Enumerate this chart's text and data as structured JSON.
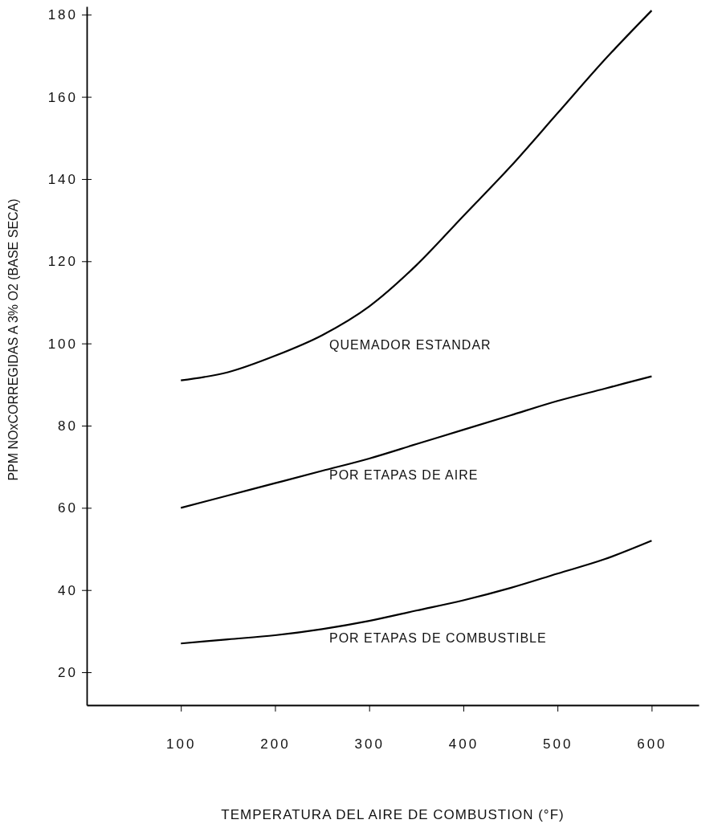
{
  "chart_data": {
    "type": "line",
    "xlabel": "TEMPERATURA DEL AIRE DE COMBUSTION (°F)",
    "ylabel": "PPM NOxCORREGIDAS A 3% O2 (BASE SECA)",
    "x": [
      100,
      150,
      200,
      250,
      300,
      350,
      400,
      450,
      500,
      550,
      600
    ],
    "series": [
      {
        "name": "QUEMADOR ESTANDAR",
        "color": "#000000",
        "values": [
          91,
          93,
          97,
          102,
          109,
          119,
          131,
          143,
          156,
          169,
          181
        ]
      },
      {
        "name": "POR ETAPAS DE AIRE",
        "color": "#000000",
        "values": [
          60,
          63,
          66,
          69,
          72,
          75.5,
          79,
          82.5,
          86,
          89,
          92
        ]
      },
      {
        "name": "POR ETAPAS DE COMBUSTIBLE",
        "color": "#000000",
        "values": [
          27,
          28,
          29,
          30.5,
          32.5,
          35,
          37.5,
          40.5,
          44,
          47.5,
          52
        ]
      }
    ],
    "xlim": [
      0,
      650
    ],
    "ylim": [
      12,
      182
    ],
    "xticks": [
      100,
      200,
      300,
      400,
      500,
      600
    ],
    "yticks": [
      20,
      40,
      60,
      80,
      100,
      120,
      140,
      160,
      180
    ],
    "grid": false,
    "legend": false,
    "marker": "none",
    "line_style": "solid"
  }
}
